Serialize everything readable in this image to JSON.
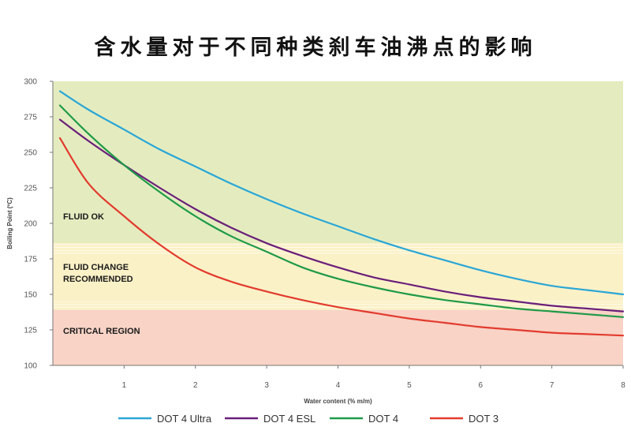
{
  "title": "含水量对于不同种类刹车油沸点的影响",
  "chart_data": {
    "type": "line",
    "xlabel": "Water content (% m/m)",
    "ylabel": "Boiling Point (ºC)",
    "xlim": [
      0,
      8
    ],
    "ylim": [
      100,
      300
    ],
    "xticks": [
      1,
      2,
      3,
      4,
      5,
      6,
      7,
      8
    ],
    "yticks": [
      100,
      125,
      150,
      175,
      200,
      225,
      250,
      275,
      300
    ],
    "regions": [
      {
        "label": "FLUID OK",
        "from": 186,
        "to": 300,
        "color": "#e4ecbf"
      },
      {
        "label": "FLUID CHANGE\nRECOMMENDED",
        "from": 139,
        "to": 186,
        "color": "#fbf1c7"
      },
      {
        "label": "CRITICAL REGION",
        "from": 100,
        "to": 139,
        "color": "#f8d3c6"
      }
    ],
    "series": [
      {
        "name": "DOT 4 Ultra",
        "color": "#2aa6d6",
        "x": [
          0.1,
          0.5,
          1,
          1.5,
          2,
          2.5,
          3,
          3.5,
          4,
          4.5,
          5,
          5.5,
          6,
          6.5,
          7,
          7.5,
          8
        ],
        "y": [
          293,
          280,
          266,
          252,
          240,
          228,
          217,
          207,
          198,
          189,
          181,
          174,
          167,
          161,
          156,
          153,
          150
        ]
      },
      {
        "name": "DOT 4 ESL",
        "color": "#6a1f7a",
        "x": [
          0.1,
          0.5,
          1,
          1.5,
          2,
          2.5,
          3,
          3.5,
          4,
          4.5,
          5,
          5.5,
          6,
          6.5,
          7,
          7.5,
          8
        ],
        "y": [
          273,
          258,
          241,
          225,
          210,
          197,
          186,
          177,
          169,
          162,
          157,
          152,
          148,
          145,
          142,
          140,
          138
        ]
      },
      {
        "name": "DOT 4",
        "color": "#1f9a48",
        "x": [
          0.1,
          0.5,
          1,
          1.5,
          2,
          2.5,
          3,
          3.5,
          4,
          4.5,
          5,
          5.5,
          6,
          6.5,
          7,
          7.5,
          8
        ],
        "y": [
          283,
          263,
          241,
          222,
          205,
          191,
          180,
          169,
          161,
          155,
          150,
          146,
          143,
          140,
          138,
          136,
          134
        ]
      },
      {
        "name": "DOT 3",
        "color": "#e23b2e",
        "x": [
          0.1,
          0.5,
          1,
          1.5,
          2,
          2.5,
          3,
          3.5,
          4,
          4.5,
          5,
          5.5,
          6,
          6.5,
          7,
          7.5,
          8
        ],
        "y": [
          260,
          228,
          205,
          185,
          169,
          159,
          152,
          146,
          141,
          137,
          133,
          130,
          127,
          125,
          123,
          122,
          121
        ]
      }
    ],
    "legend": "bottom",
    "grid": false
  }
}
